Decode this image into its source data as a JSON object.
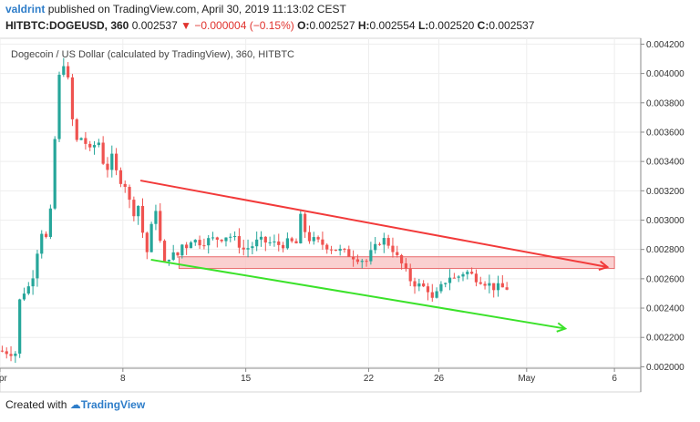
{
  "header": {
    "author": "valdrint",
    "published_text": "published on TradingView.com, April 30, 2019 11:13:02 CEST",
    "symbol_line": {
      "symbol": "HITBTC:DOGEUSD, 360",
      "last": "0.002537",
      "change": "−0.000004 (−0.15%)",
      "o_label": "O:",
      "o": "0.002527",
      "h_label": "H:",
      "h": "0.002554",
      "l_label": "L:",
      "l": "0.002520",
      "c_label": "C:",
      "c": "0.002537"
    }
  },
  "footer": {
    "created_with": "Created with",
    "brand": "TradingView"
  },
  "colors": {
    "up": "#26a69a",
    "down": "#ef5350",
    "resistance": "#f23a3a",
    "support": "#3be22a",
    "zone_fill": "#f8c0c0",
    "zone_stroke": "#e8696b"
  },
  "chart_data": {
    "type": "candlestick",
    "title": "Dogecoin / US Dollar (calculated by TradingView), 360, HITBTC",
    "x_ticks": [
      "Apr",
      "8",
      "15",
      "22",
      "26",
      "May",
      "6"
    ],
    "x_tick_days": [
      1,
      8,
      15,
      22,
      26,
      31,
      36
    ],
    "x_range_days": [
      1,
      37.5
    ],
    "y_ticks": [
      "0.002000",
      "0.002200",
      "0.002400",
      "0.002600",
      "0.002800",
      "0.003000",
      "0.003200",
      "0.003400",
      "0.003600",
      "0.003800",
      "0.004000",
      "0.004200"
    ],
    "ylim": [
      0.00199,
      0.00424
    ],
    "grid": true,
    "segments": [
      {
        "day_start": 1.0,
        "day_end": 2.0,
        "points": [
          0.00211,
          0.002105,
          0.0021,
          0.002095
        ]
      },
      {
        "day_start": 2.0,
        "day_end": 4.0,
        "points": [
          0.0021,
          0.0025,
          0.00252,
          0.00256,
          0.0027,
          0.00295,
          0.00285,
          0.00305
        ]
      },
      {
        "day_start": 4.0,
        "day_end": 5.0,
        "points": [
          0.00305,
          0.0034,
          0.0036,
          0.0039,
          0.00405,
          0.00415,
          0.00385,
          0.00395
        ]
      },
      {
        "day_start": 5.0,
        "day_end": 7.0,
        "points": [
          0.0039,
          0.00365,
          0.0035,
          0.0036,
          0.00345,
          0.0035,
          0.00355,
          0.0034
        ]
      },
      {
        "day_start": 7.0,
        "day_end": 9.0,
        "points": [
          0.0034,
          0.00335,
          0.00345,
          0.00325,
          0.0033,
          0.00315,
          0.00305,
          0.0031
        ]
      },
      {
        "day_start": 9.0,
        "day_end": 10.5,
        "points": [
          0.0031,
          0.00295,
          0.00275,
          0.00285,
          0.00305,
          0.0031,
          0.0028,
          0.0027
        ]
      },
      {
        "day_start": 10.5,
        "day_end": 12.0,
        "points": [
          0.0027,
          0.00275,
          0.00278,
          0.00272,
          0.0028,
          0.00285,
          0.00282,
          0.00287
        ]
      },
      {
        "day_start": 12.0,
        "day_end": 15.0,
        "points": [
          0.00287,
          0.00285,
          0.00286,
          0.00287,
          0.00288,
          0.0029,
          0.00286,
          0.0028
        ]
      },
      {
        "day_start": 15.0,
        "day_end": 18.0,
        "points": [
          0.0028,
          0.00282,
          0.00286,
          0.00285,
          0.00284,
          0.00283,
          0.00285,
          0.00284
        ]
      },
      {
        "day_start": 18.0,
        "day_end": 19.0,
        "points": [
          0.00284,
          0.003,
          0.00302,
          0.00295,
          0.0029,
          0.00288,
          0.00285,
          0.00286
        ]
      },
      {
        "day_start": 19.0,
        "day_end": 22.0,
        "points": [
          0.00286,
          0.00284,
          0.00282,
          0.0028,
          0.00278,
          0.00276,
          0.00274,
          0.00272
        ]
      },
      {
        "day_start": 22.0,
        "day_end": 24.0,
        "points": [
          0.00272,
          0.00278,
          0.00282,
          0.00288,
          0.00285,
          0.00282,
          0.00275,
          0.0027
        ]
      },
      {
        "day_start": 24.0,
        "day_end": 25.5,
        "points": [
          0.0027,
          0.00265,
          0.0026,
          0.00258,
          0.00256,
          0.00255,
          0.00254,
          0.00253
        ]
      },
      {
        "day_start": 25.5,
        "day_end": 27.0,
        "points": [
          0.00253,
          0.00245,
          0.00248,
          0.00252,
          0.00256,
          0.0026,
          0.00262,
          0.0026
        ]
      },
      {
        "day_start": 27.0,
        "day_end": 29.0,
        "points": [
          0.0026,
          0.00262,
          0.00265,
          0.00264,
          0.00261,
          0.0026,
          0.00258,
          0.00256
        ]
      },
      {
        "day_start": 29.0,
        "day_end": 30.0,
        "points": [
          0.00256,
          0.00254,
          0.00255,
          0.00253,
          0.00254,
          0.002537
        ]
      }
    ],
    "annotations": [
      {
        "type": "trendline",
        "name": "resistance",
        "x1_day": 9.0,
        "y1": 0.00327,
        "x2_day": 35.6,
        "y2": 0.00268,
        "arrow": true
      },
      {
        "type": "trendline",
        "name": "support",
        "x1_day": 9.6,
        "y1": 0.00273,
        "x2_day": 33.2,
        "y2": 0.00226,
        "arrow": true
      },
      {
        "type": "zone",
        "name": "resistance-zone",
        "x1_day": 11.2,
        "x2_day": 36.0,
        "y1": 0.00267,
        "y2": 0.00275
      }
    ]
  }
}
